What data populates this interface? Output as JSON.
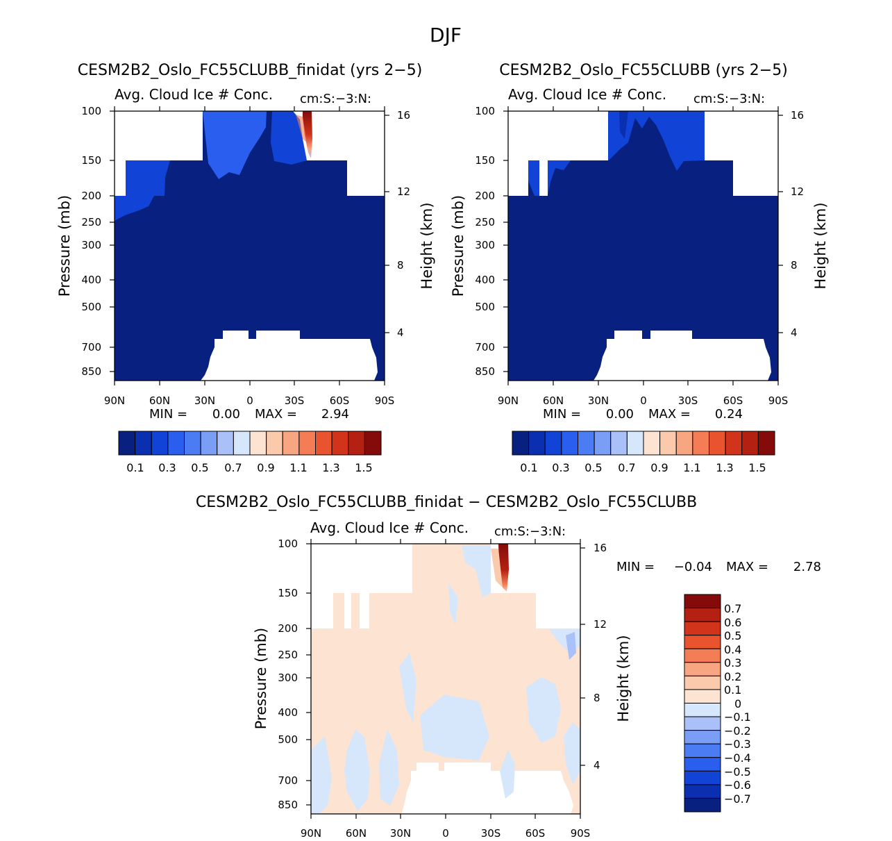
{
  "figure_title": "DJF",
  "palette": {
    "seq": [
      "#08207f",
      "#0a2fb0",
      "#1144d6",
      "#2a5eef",
      "#4b7cf3",
      "#7a9df5",
      "#a9c0f8",
      "#d6e6fb",
      "#fde4d2",
      "#fbc9ab",
      "#f8a582",
      "#f57d55",
      "#e9532d",
      "#d1341a",
      "#b42011",
      "#850b0b"
    ],
    "div": [
      "#08207f",
      "#0a2fb0",
      "#1144d6",
      "#2a5eef",
      "#4b7cf3",
      "#7a9df5",
      "#a9c0f8",
      "#d6e6fb",
      "#fde4d2",
      "#fbc9ab",
      "#f8a582",
      "#f57d55",
      "#e9532d",
      "#d1341a",
      "#b42011",
      "#850b0b"
    ]
  },
  "chart_data": [
    {
      "type": "heatmap",
      "id": "p1",
      "title": "CESM2B2_Oslo_FC55CLUBB_finidat (yrs 2−5)",
      "subtitle": "Avg. Cloud Ice # Conc.",
      "units": "cm:S:−3:N:",
      "ylabel": "Pressure (mb)",
      "y2label": "Height (km)",
      "xticks": [
        "90N",
        "60N",
        "30N",
        "0",
        "30S",
        "60S",
        "90S"
      ],
      "yticks": [
        "100",
        "150",
        "200",
        "250",
        "300",
        "400",
        "500",
        "700",
        "850"
      ],
      "y2ticks": [
        "16",
        "12",
        "8",
        "4"
      ],
      "stats": {
        "min_label": "MIN =",
        "min": "0.00",
        "max_label": "MAX =",
        "max": "2.94"
      },
      "colorbar_labels": [
        "0.1",
        "0.3",
        "0.5",
        "0.7",
        "0.9",
        "1.1",
        "1.3",
        "1.5"
      ],
      "features": {
        "ice_core_max": 2.94,
        "ice_core_lat": -40,
        "ice_core_top_mb": 100,
        "ice_core_bottom_mb": 150
      }
    },
    {
      "type": "heatmap",
      "id": "p2",
      "title": "CESM2B2_Oslo_FC55CLUBB (yrs 2−5)",
      "subtitle": "Avg. Cloud Ice # Conc.",
      "units": "cm:S:−3:N:",
      "ylabel": "Pressure (mb)",
      "y2label": "Height (km)",
      "xticks": [
        "90N",
        "60N",
        "30N",
        "0",
        "30S",
        "60S",
        "90S"
      ],
      "yticks": [
        "100",
        "150",
        "200",
        "250",
        "300",
        "400",
        "500",
        "700",
        "850"
      ],
      "y2ticks": [
        "16",
        "12",
        "8",
        "4"
      ],
      "stats": {
        "min_label": "MIN =",
        "min": "0.00",
        "max_label": "MAX =",
        "max": "0.24"
      },
      "colorbar_labels": [
        "0.1",
        "0.3",
        "0.5",
        "0.7",
        "0.9",
        "1.1",
        "1.3",
        "1.5"
      ]
    },
    {
      "type": "heatmap",
      "id": "p3",
      "title": "CESM2B2_Oslo_FC55CLUBB_finidat − CESM2B2_Oslo_FC55CLUBB",
      "subtitle": "Avg. Cloud Ice # Conc.",
      "units": "cm:S:−3:N:",
      "ylabel": "Pressure (mb)",
      "y2label": "Height (km)",
      "xticks": [
        "90N",
        "60N",
        "30N",
        "0",
        "30S",
        "60S",
        "90S"
      ],
      "yticks": [
        "100",
        "150",
        "200",
        "250",
        "300",
        "400",
        "500",
        "700",
        "850"
      ],
      "y2ticks": [
        "16",
        "12",
        "8",
        "4"
      ],
      "stats": {
        "min_label": "MIN =",
        "min": "−0.04",
        "max_label": "MAX =",
        "max": "2.78"
      },
      "colorbar_labels": [
        "0.7",
        "0.6",
        "0.5",
        "0.4",
        "0.3",
        "0.2",
        "0.1",
        "0",
        "−0.1",
        "−0.2",
        "−0.3",
        "−0.4",
        "−0.5",
        "−0.6",
        "−0.7"
      ],
      "features": {
        "diff_core_max": 2.78,
        "diff_core_lat": -40
      }
    }
  ]
}
